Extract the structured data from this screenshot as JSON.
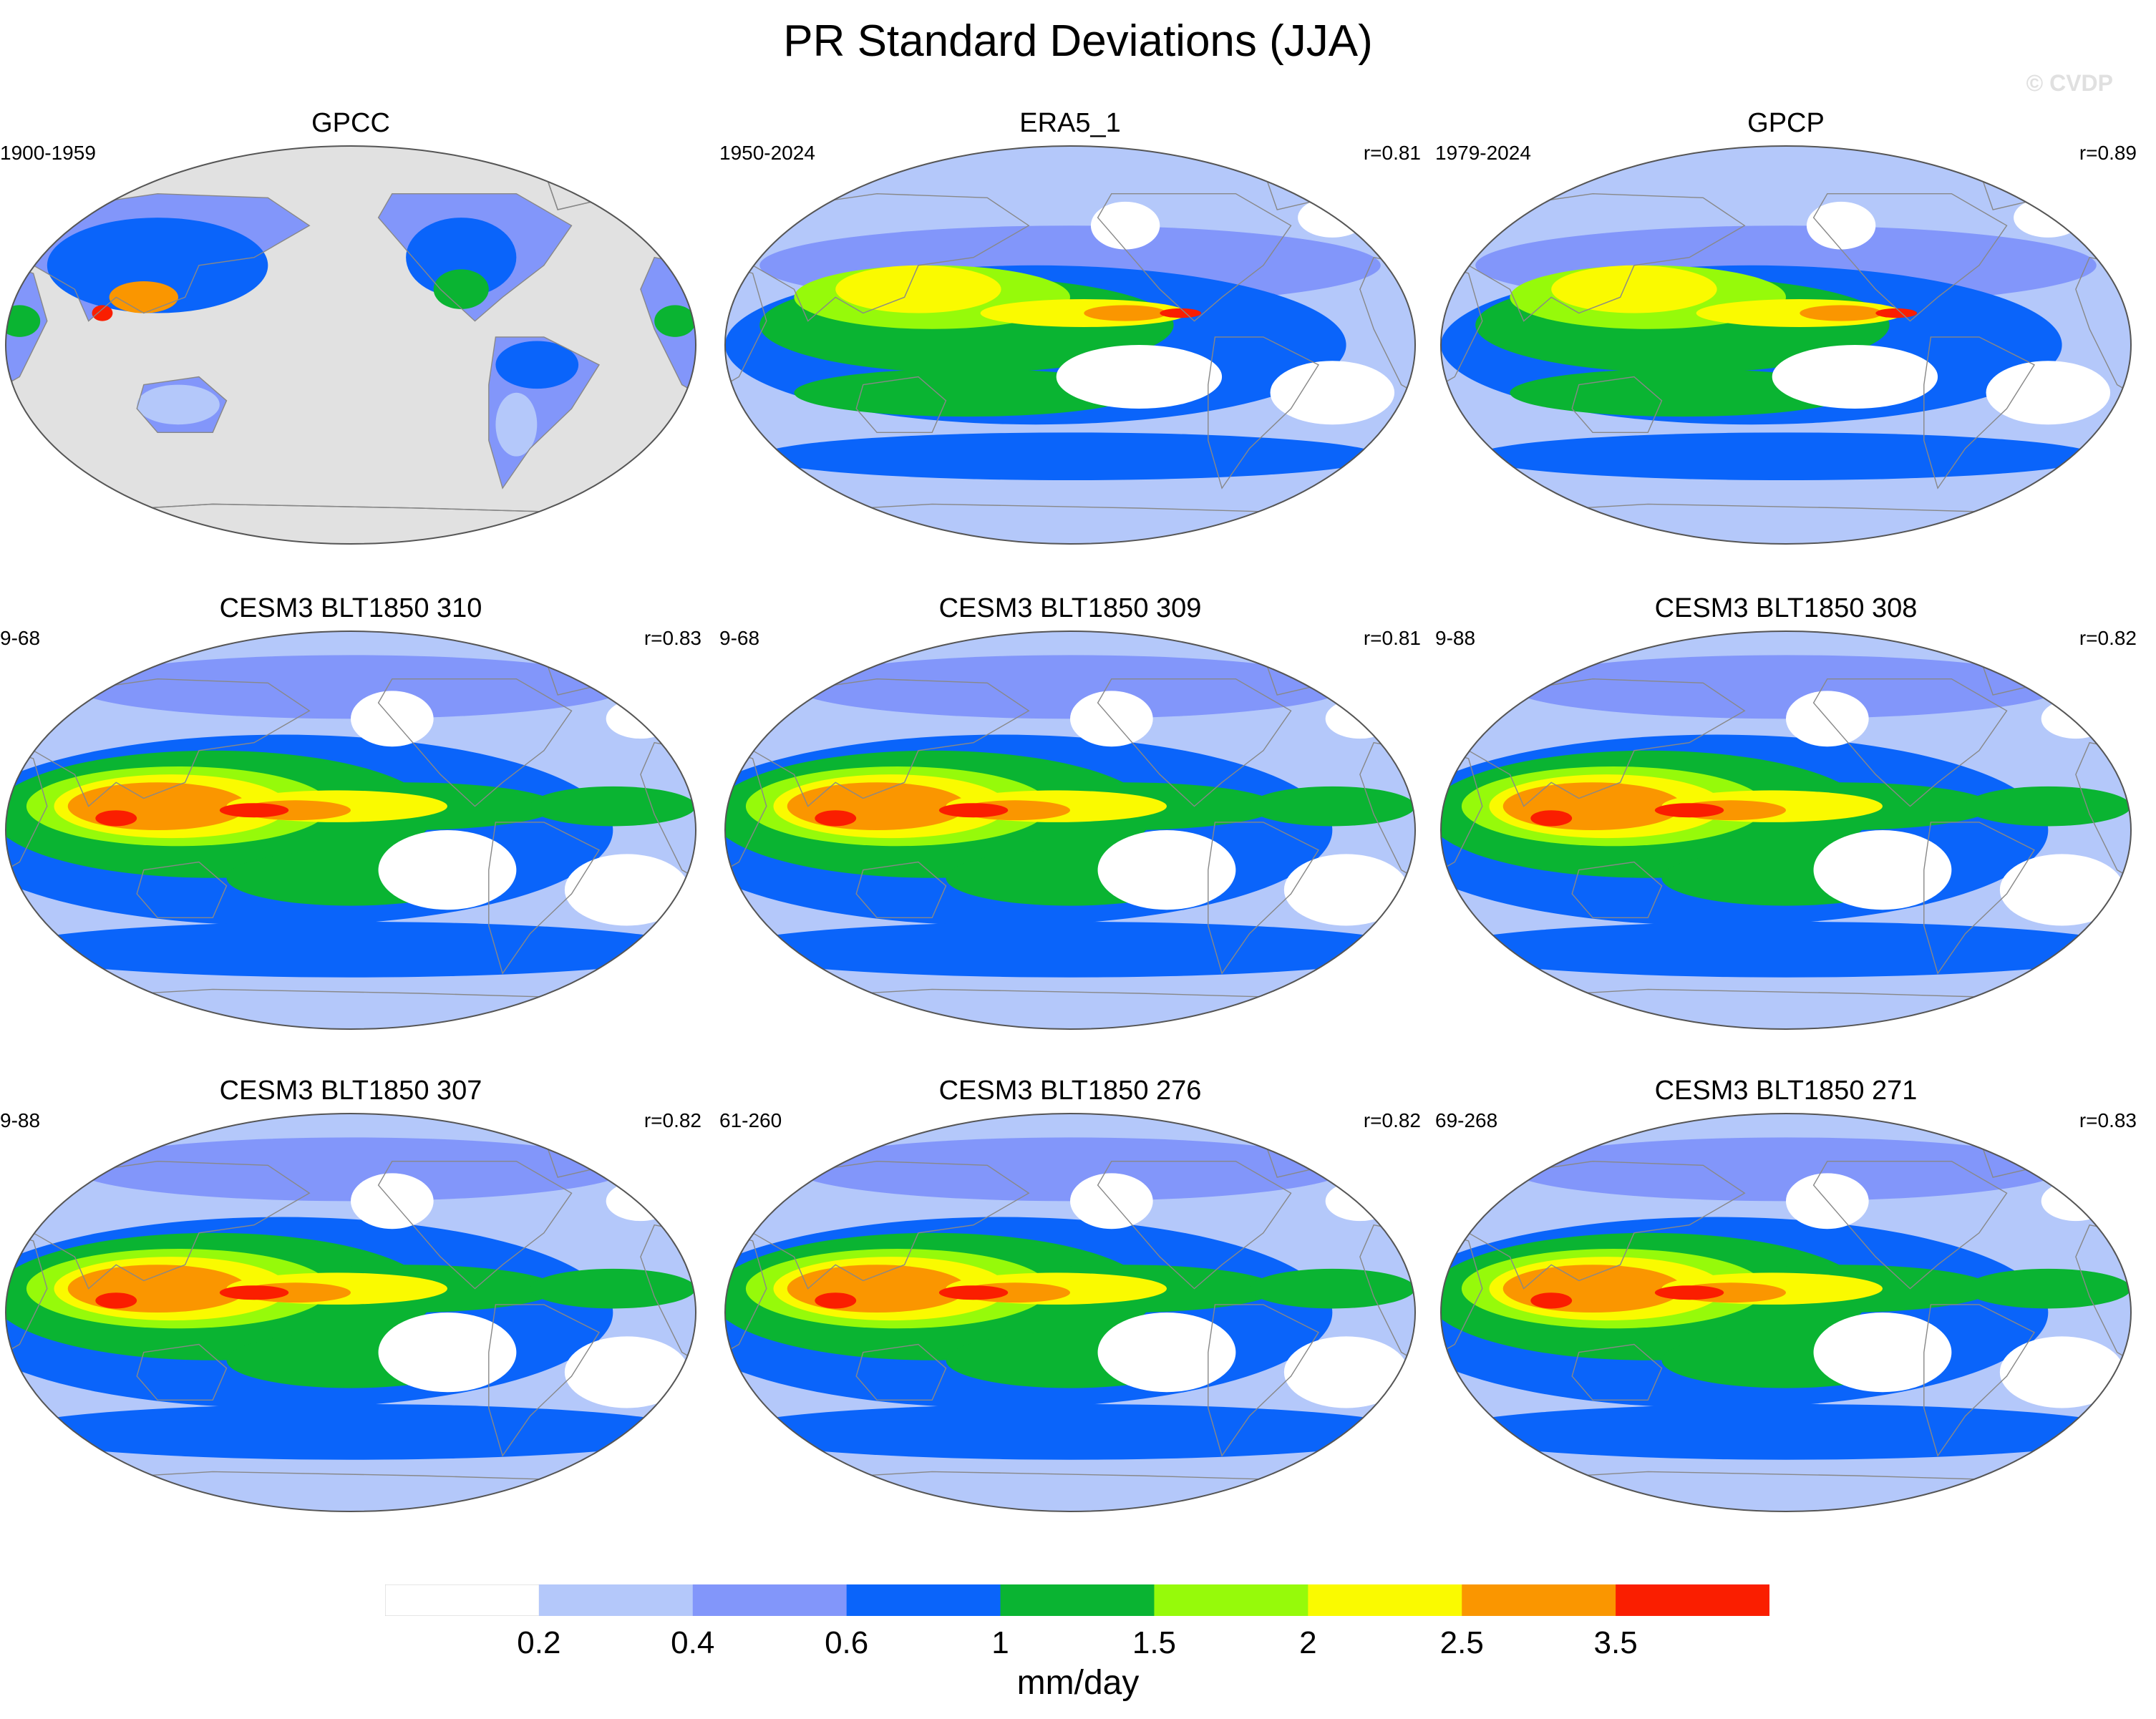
{
  "figure": {
    "title": "PR Standard Deviations (JJA)",
    "copyright": "© CVDP",
    "units_label": "mm/day"
  },
  "colorbar": {
    "levels": [
      "0.2",
      "0.4",
      "0.6",
      "1",
      "1.5",
      "2",
      "2.5",
      "3.5"
    ],
    "colors": [
      "#ffffff",
      "#b4c8fa",
      "#8296fa",
      "#0a64fa",
      "#0ab432",
      "#96fa0a",
      "#fafa00",
      "#fa9600",
      "#fa1e00"
    ]
  },
  "land_mask_color": "#e1e1e1",
  "panels": [
    {
      "title": "GPCC",
      "years": "1900-1959",
      "corr": "",
      "style": "obs-land"
    },
    {
      "title": "ERA5_1",
      "years": "1950-2024",
      "corr": "r=0.81",
      "style": "obs"
    },
    {
      "title": "GPCP",
      "years": "1979-2024",
      "corr": "r=0.89",
      "style": "obs"
    },
    {
      "title": "CESM3 BLT1850 310",
      "years": "9-68",
      "corr": "r=0.83",
      "style": "model"
    },
    {
      "title": "CESM3 BLT1850 309",
      "years": "9-68",
      "corr": "r=0.81",
      "style": "model"
    },
    {
      "title": "CESM3 BLT1850 308",
      "years": "9-88",
      "corr": "r=0.82",
      "style": "model"
    },
    {
      "title": "CESM3 BLT1850 307",
      "years": "9-88",
      "corr": "r=0.82",
      "style": "model"
    },
    {
      "title": "CESM3 BLT1850 276",
      "years": "61-260",
      "corr": "r=0.82",
      "style": "model"
    },
    {
      "title": "CESM3 BLT1850 271",
      "years": "69-268",
      "corr": "r=0.83",
      "style": "model"
    }
  ]
}
